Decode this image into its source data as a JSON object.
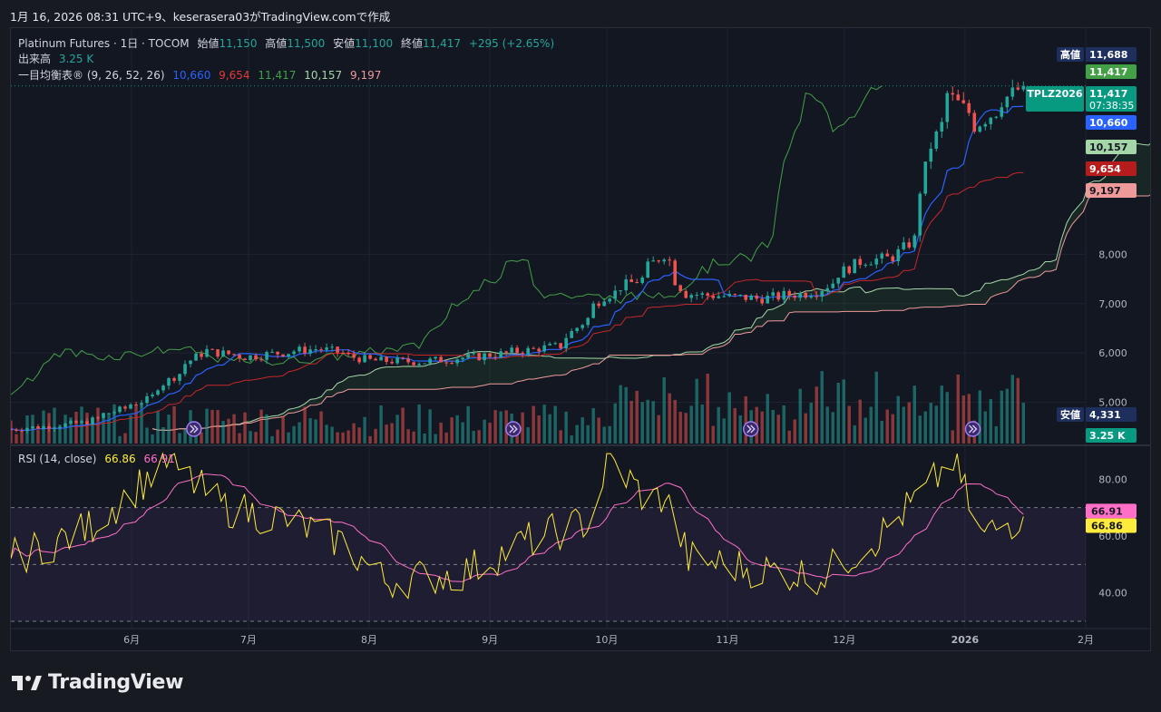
{
  "header": {
    "timestamp": "1月 16, 2026 08:31 UTC+9、keserasera03がTradingView.comで作成"
  },
  "legend": {
    "symbol": "Platinum Futures · 1日 · TOCOM",
    "open_label": "始値",
    "open": "11,150",
    "high_label": "高値",
    "high": "11,500",
    "low_label": "安値",
    "low": "11,100",
    "close_label": "終値",
    "close": "11,417",
    "change": "+295 (+2.65%)",
    "volume_label": "出来高",
    "volume": "3.25 K",
    "ichimoku_label": "一目均衡表® (9, 26, 52, 26)",
    "ichimoku_values": [
      "10,660",
      "9,654",
      "11,417",
      "10,157",
      "9,197"
    ],
    "rsi_label": "RSI (14, close)",
    "rsi_value": "66.86",
    "rsi_ma_value": "66.91"
  },
  "colors": {
    "background": "#131722",
    "up": "#26a69a",
    "down": "#ef5350",
    "tenkan": "#2962ff",
    "kijun": "#b71c1c",
    "chikou": "#43a047",
    "span_a": "#a5d6a7",
    "span_b": "#ef9a9a",
    "rsi": "#ffeb3b",
    "rsi_ma": "#ff6ec7"
  },
  "price_labels": [
    {
      "tag": "高値",
      "value": "11,688",
      "color": "#1e2f5e"
    },
    {
      "tag": "",
      "value": "11,417",
      "color": "#43a047"
    },
    {
      "tag": "TPLZ2026",
      "value": "11,417",
      "sub": "07:38:35",
      "color": "#089981"
    },
    {
      "tag": "",
      "value": "10,660",
      "color": "#2962ff"
    },
    {
      "tag": "",
      "value": "10,157",
      "color": "#a5d6a7"
    },
    {
      "tag": "",
      "value": "9,654",
      "color": "#b71c1c"
    },
    {
      "tag": "",
      "value": "9,197",
      "color": "#ef9a9a"
    },
    {
      "tag": "安値",
      "value": "4,331",
      "color": "#1e2f5e"
    },
    {
      "tag": "",
      "value": "3.25 K",
      "color": "#089981"
    }
  ],
  "chart_data": [
    {
      "type": "candlestick",
      "title": "Platinum Futures · 1日 · TOCOM",
      "y_ticks": [
        "5,000",
        "6,000",
        "7,000",
        "8,000"
      ],
      "ylim": [
        4200,
        12000
      ],
      "x_ticks": [
        "6月",
        "7月",
        "8月",
        "9月",
        "10月",
        "11月",
        "12月",
        "2026",
        "2月"
      ],
      "anchors": [
        {
          "date": "2025-05-01",
          "close": 4450
        },
        {
          "date": "2025-05-20",
          "close": 4580
        },
        {
          "date": "2025-06-05",
          "close": 5050
        },
        {
          "date": "2025-06-20",
          "close": 6050
        },
        {
          "date": "2025-07-01",
          "close": 5920
        },
        {
          "date": "2025-07-20",
          "close": 6100
        },
        {
          "date": "2025-08-01",
          "close": 5850
        },
        {
          "date": "2025-08-15",
          "close": 5820
        },
        {
          "date": "2025-09-01",
          "close": 5950
        },
        {
          "date": "2025-09-20",
          "close": 6150
        },
        {
          "date": "2025-10-01",
          "close": 7150
        },
        {
          "date": "2025-10-10",
          "close": 7500
        },
        {
          "date": "2025-10-16",
          "close": 8000
        },
        {
          "date": "2025-10-22",
          "close": 7200
        },
        {
          "date": "2025-11-10",
          "close": 7100
        },
        {
          "date": "2025-11-25",
          "close": 7250
        },
        {
          "date": "2025-12-05",
          "close": 7850
        },
        {
          "date": "2025-12-15",
          "close": 7950
        },
        {
          "date": "2025-12-20",
          "close": 8400
        },
        {
          "date": "2025-12-24",
          "close": 10200
        },
        {
          "date": "2025-12-29",
          "close": 11250
        },
        {
          "date": "2026-01-05",
          "close": 10600
        },
        {
          "date": "2026-01-16",
          "close": 11417
        }
      ],
      "ichimoku": {
        "tenkan": 10660,
        "kijun": 9654,
        "chikou": 11417,
        "span_a": 10157,
        "span_b": 9197
      },
      "high": 11688,
      "low": 4331
    },
    {
      "type": "bar",
      "title": "出来高",
      "last": "3.25 K"
    },
    {
      "type": "line",
      "title": "RSI (14, close)",
      "y_ticks": [
        "40.00",
        "60.00",
        "80.00"
      ],
      "ylim": [
        30,
        90
      ],
      "levels": [
        70,
        50,
        30
      ],
      "series": [
        {
          "name": "RSI",
          "value": 66.86
        },
        {
          "name": "RSI MA",
          "value": 66.91
        }
      ],
      "anchors": [
        {
          "date": "2025-05-01",
          "rsi": 52
        },
        {
          "date": "2025-05-20",
          "rsi": 62
        },
        {
          "date": "2025-06-10",
          "rsi": 86
        },
        {
          "date": "2025-06-25",
          "rsi": 70
        },
        {
          "date": "2025-07-10",
          "rsi": 66
        },
        {
          "date": "2025-07-25",
          "rsi": 58
        },
        {
          "date": "2025-08-05",
          "rsi": 44
        },
        {
          "date": "2025-08-25",
          "rsi": 47
        },
        {
          "date": "2025-09-10",
          "rsi": 58
        },
        {
          "date": "2025-09-28",
          "rsi": 66
        },
        {
          "date": "2025-10-01",
          "rsi": 88
        },
        {
          "date": "2025-10-12",
          "rsi": 72
        },
        {
          "date": "2025-10-16",
          "rsi": 74
        },
        {
          "date": "2025-10-22",
          "rsi": 52
        },
        {
          "date": "2025-11-10",
          "rsi": 48
        },
        {
          "date": "2025-11-25",
          "rsi": 46
        },
        {
          "date": "2025-12-10",
          "rsi": 60
        },
        {
          "date": "2025-12-22",
          "rsi": 76
        },
        {
          "date": "2025-12-29",
          "rsi": 87
        },
        {
          "date": "2026-01-05",
          "rsi": 60
        },
        {
          "date": "2026-01-16",
          "rsi": 66.86
        }
      ]
    }
  ],
  "footer": {
    "brand": "TradingView"
  }
}
